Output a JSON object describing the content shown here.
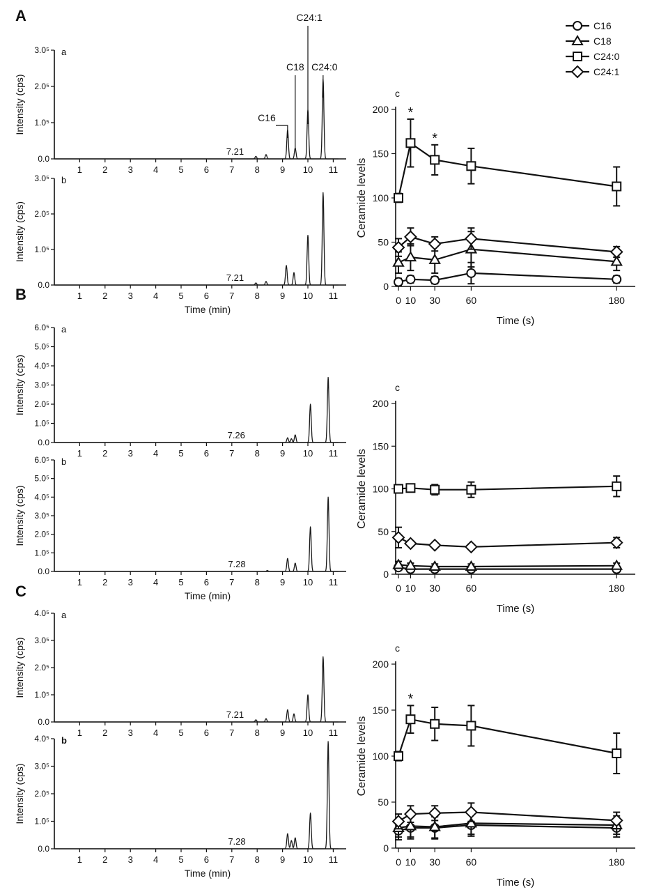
{
  "panels": [
    {
      "letter": "A",
      "chromatograms": [
        {
          "sub": "a",
          "ylabel": "Intensity (cps)",
          "ymax": 3,
          "yticks": [
            0,
            1,
            2,
            3
          ],
          "ytick_labels": [
            "0.0",
            "1.0⁵",
            "2.0⁵",
            "3.0⁵"
          ],
          "marker_value": "7.21",
          "marker_time": 7.21,
          "peaks": [
            [
              7.95,
              0.07
            ],
            [
              8.35,
              0.12
            ],
            [
              9.2,
              0.8
            ],
            [
              9.5,
              0.3
            ],
            [
              10.0,
              1.35
            ],
            [
              10.6,
              2.2
            ]
          ],
          "annotations": [
            {
              "label": "C16",
              "time": 9.2
            },
            {
              "label": "C18",
              "time": 9.5
            },
            {
              "label": "C24:1",
              "time": 10.0
            },
            {
              "label": "C24:0",
              "time": 10.6
            }
          ]
        },
        {
          "sub": "b",
          "ylabel": "Intensity (cps)",
          "xlabel": "Time (min)",
          "ymax": 3,
          "yticks": [
            0,
            1,
            2,
            3
          ],
          "ytick_labels": [
            "0.0",
            "1.0⁵",
            "2.0⁵",
            "3.0⁵"
          ],
          "marker_value": "7.21",
          "marker_time": 7.21,
          "peaks": [
            [
              7.95,
              0.06
            ],
            [
              8.35,
              0.1
            ],
            [
              9.15,
              0.55
            ],
            [
              9.45,
              0.35
            ],
            [
              10.0,
              1.4
            ],
            [
              10.6,
              2.6
            ]
          ],
          "annotations": []
        }
      ],
      "levels": {
        "sub": "c",
        "ylabel": "Ceramide levels",
        "xlabel": "Time (s)",
        "ymax": 200,
        "yticks": [
          0,
          50,
          100,
          150,
          200
        ],
        "xticks": [
          0,
          10,
          30,
          60,
          180
        ],
        "stars": [
          {
            "x": 10,
            "text": "*"
          },
          {
            "x": 30,
            "text": "*"
          }
        ]
      }
    },
    {
      "letter": "B",
      "chromatograms": [
        {
          "sub": "a",
          "ylabel": "Intensity (cps)",
          "ymax": 6,
          "yticks": [
            0,
            1,
            2,
            3,
            4,
            5,
            6
          ],
          "ytick_labels": [
            "0.0",
            "1.0⁵",
            "2.0⁵",
            "3.0⁵",
            "4.0⁵",
            "5.0⁵",
            "6.0⁵"
          ],
          "marker_value": "7.26",
          "marker_time": 7.26,
          "peaks": [
            [
              9.2,
              0.25
            ],
            [
              9.35,
              0.2
            ],
            [
              9.5,
              0.4
            ],
            [
              10.1,
              2.0
            ],
            [
              10.8,
              3.4
            ]
          ],
          "annotations": []
        },
        {
          "sub": "b",
          "ylabel": "Intensity (cps)",
          "xlabel": "Time (min)",
          "ymax": 6,
          "yticks": [
            0,
            1,
            2,
            3,
            4,
            5,
            6
          ],
          "ytick_labels": [
            "0.0",
            "1.0⁵",
            "2.0⁵",
            "3.0⁵",
            "4.0⁵",
            "5.0⁵",
            "6.0⁵"
          ],
          "marker_value": "7.28",
          "marker_time": 7.28,
          "peaks": [
            [
              8.4,
              0.05
            ],
            [
              9.2,
              0.7
            ],
            [
              9.5,
              0.45
            ],
            [
              10.1,
              2.4
            ],
            [
              10.8,
              4.0
            ]
          ],
          "annotations": []
        }
      ],
      "levels": {
        "sub": "c",
        "ylabel": "Ceramide levels",
        "xlabel": "Time (s)",
        "ymax": 200,
        "yticks": [
          0,
          50,
          100,
          150,
          200
        ],
        "xticks": [
          0,
          10,
          30,
          60,
          180
        ],
        "stars": []
      }
    },
    {
      "letter": "C",
      "chromatograms": [
        {
          "sub": "a",
          "ylabel": "Intensity (cps)",
          "ymax": 4,
          "yticks": [
            0,
            1,
            2,
            3,
            4
          ],
          "ytick_labels": [
            "0.0",
            "1.0⁵",
            "2.0⁵",
            "3.0⁵",
            "4.0⁵"
          ],
          "marker_value": "7.21",
          "marker_time": 7.21,
          "peaks": [
            [
              7.95,
              0.08
            ],
            [
              8.35,
              0.12
            ],
            [
              9.2,
              0.45
            ],
            [
              9.45,
              0.3
            ],
            [
              10.0,
              1.0
            ],
            [
              10.6,
              2.4
            ]
          ],
          "annotations": []
        },
        {
          "sub": "b",
          "ylabel": "Intensity (cps)",
          "xlabel": "Time (min)",
          "ymax": 4,
          "yticks": [
            0,
            1,
            2,
            3,
            4
          ],
          "ytick_labels": [
            "0.0",
            "1.0⁵",
            "2.0⁵",
            "3.0⁵",
            "4.0⁵"
          ],
          "marker_value": "7.28",
          "marker_time": 7.28,
          "peaks": [
            [
              9.2,
              0.55
            ],
            [
              9.35,
              0.3
            ],
            [
              9.5,
              0.4
            ],
            [
              10.1,
              1.3
            ],
            [
              10.8,
              3.9
            ]
          ],
          "annotations": []
        }
      ],
      "levels": {
        "sub": "c",
        "ylabel": "Ceramide levels",
        "xlabel": "Time (s)",
        "ymax": 200,
        "yticks": [
          0,
          50,
          100,
          150,
          200
        ],
        "xticks": [
          0,
          10,
          30,
          60,
          180
        ],
        "stars": [
          {
            "x": 10,
            "text": "*"
          }
        ]
      }
    }
  ],
  "chromatogram_xticks": [
    1,
    2,
    3,
    4,
    5,
    6,
    7,
    8,
    9,
    10,
    11
  ],
  "legend": [
    {
      "name": "C16",
      "marker": "circle"
    },
    {
      "name": "C18",
      "marker": "triangle"
    },
    {
      "name": "C24:0",
      "marker": "square"
    },
    {
      "name": "C24:1",
      "marker": "diamond"
    }
  ],
  "chart_data": [
    {
      "type": "line",
      "panel": "A",
      "xlabel": "Time (s)",
      "ylabel": "Ceramide levels",
      "ylim": [
        0,
        200
      ],
      "x": [
        0,
        10,
        30,
        60,
        180
      ],
      "series": [
        {
          "name": "C16",
          "values": [
            5,
            8,
            7,
            15,
            8
          ],
          "errors": [
            4,
            4,
            4,
            12,
            4
          ]
        },
        {
          "name": "C18",
          "values": [
            27,
            33,
            30,
            42,
            28
          ],
          "errors": [
            12,
            15,
            15,
            20,
            10
          ]
        },
        {
          "name": "C24:0",
          "values": [
            100,
            162,
            143,
            136,
            113
          ],
          "errors": [
            5,
            27,
            17,
            20,
            22
          ]
        },
        {
          "name": "C24:1",
          "values": [
            44,
            56,
            48,
            54,
            39
          ],
          "errors": [
            10,
            10,
            8,
            12,
            6
          ]
        }
      ]
    },
    {
      "type": "line",
      "panel": "B",
      "xlabel": "Time (s)",
      "ylabel": "Ceramide levels",
      "ylim": [
        0,
        200
      ],
      "x": [
        0,
        10,
        30,
        60,
        180
      ],
      "series": [
        {
          "name": "C16",
          "values": [
            8,
            6,
            6,
            6,
            6
          ],
          "errors": [
            3,
            2,
            2,
            2,
            2
          ]
        },
        {
          "name": "C18",
          "values": [
            11,
            10,
            9,
            9,
            10
          ],
          "errors": [
            4,
            3,
            3,
            3,
            3
          ]
        },
        {
          "name": "C24:0",
          "values": [
            100,
            101,
            99,
            99,
            103
          ],
          "errors": [
            4,
            4,
            6,
            9,
            12
          ]
        },
        {
          "name": "C24:1",
          "values": [
            43,
            36,
            34,
            32,
            37
          ],
          "errors": [
            12,
            3,
            3,
            3,
            6
          ]
        }
      ]
    },
    {
      "type": "line",
      "panel": "C",
      "xlabel": "Time (s)",
      "ylabel": "Ceramide levels",
      "ylim": [
        0,
        200
      ],
      "x": [
        0,
        10,
        30,
        60,
        180
      ],
      "series": [
        {
          "name": "C16",
          "values": [
            19,
            22,
            22,
            25,
            22
          ],
          "errors": [
            10,
            12,
            12,
            12,
            10
          ]
        },
        {
          "name": "C18",
          "values": [
            22,
            24,
            23,
            27,
            25
          ],
          "errors": [
            10,
            12,
            12,
            12,
            10
          ]
        },
        {
          "name": "C24:0",
          "values": [
            100,
            140,
            135,
            133,
            103
          ],
          "errors": [
            5,
            15,
            18,
            22,
            22
          ]
        },
        {
          "name": "C24:1",
          "values": [
            29,
            37,
            38,
            39,
            30
          ],
          "errors": [
            8,
            9,
            8,
            10,
            9
          ]
        }
      ]
    }
  ]
}
